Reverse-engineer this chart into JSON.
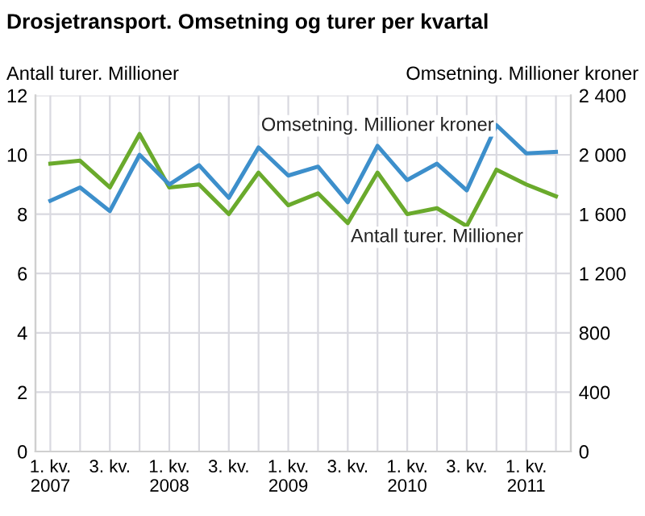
{
  "chart_data": {
    "type": "line",
    "title": "Drosjetransport. Omsetning og turer per kvartal",
    "ylabel": "Antall turer. Millioner",
    "y2label": "Omsetning. Millioner kroner",
    "categories": [
      "1. kv.\n2007",
      null,
      "3. kv.",
      null,
      "1. kv.\n2008",
      null,
      "3. kv.",
      null,
      "1. kv.\n2009",
      null,
      "3. kv.",
      null,
      "1. kv.\n2010",
      null,
      "3. kv.",
      null,
      "1. kv.\n2011",
      null
    ],
    "series": [
      {
        "name": "Antall turer. Millioner",
        "color": "#6aaa2c",
        "values": [
          9.7,
          9.8,
          8.9,
          10.7,
          8.9,
          9.0,
          8.0,
          9.4,
          8.3,
          8.7,
          7.7,
          9.4,
          8.0,
          8.2,
          7.6,
          9.5,
          9.0,
          8.6
        ]
      },
      {
        "name": "Omsetning. Millioner kroner",
        "color": "#3d8fcb",
        "axis": "y2",
        "values": [
          1690,
          1780,
          1620,
          2000,
          1800,
          1930,
          1710,
          2050,
          1860,
          1920,
          1680,
          2060,
          1830,
          1940,
          1760,
          2200,
          2010,
          2020
        ]
      }
    ],
    "ylim": [
      0,
      12
    ],
    "yticks": [
      0,
      2,
      4,
      6,
      8,
      10,
      12
    ],
    "y2lim": [
      0,
      2400
    ],
    "y2ticks": [
      0,
      {
        "value": 400,
        "label": "400"
      },
      {
        "value": 800,
        "label": "800"
      },
      {
        "value": 1200,
        "label": "1 200"
      },
      {
        "value": 1600,
        "label": "1 600"
      },
      {
        "value": 2000,
        "label": "2 000"
      },
      {
        "value": 2400,
        "label": "2 400"
      }
    ],
    "grid": true,
    "legend": false,
    "marker": "none",
    "line_style": "solid"
  }
}
